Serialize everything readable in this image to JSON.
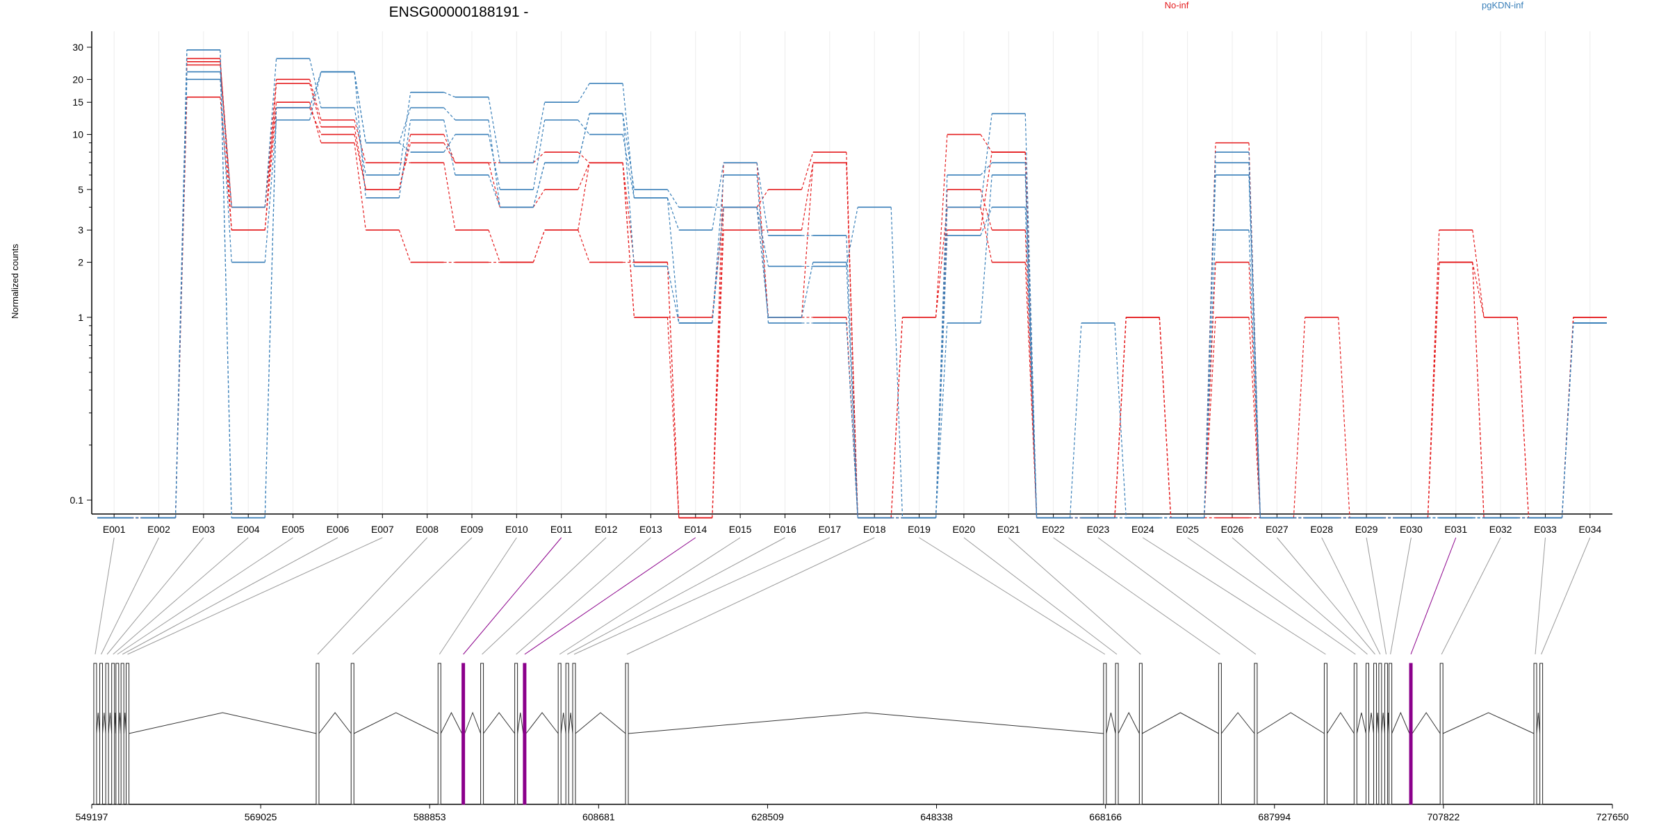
{
  "chart_data": {
    "type": "line",
    "title": "ENSG00000188191 -",
    "ylabel": "Normalized counts",
    "xlabel": "",
    "y_scale": "log",
    "y_ticks": [
      {
        "value": 0.1,
        "label": "0.1"
      },
      {
        "value": 1,
        "label": "1"
      },
      {
        "value": 2,
        "label": "2"
      },
      {
        "value": 3,
        "label": "3"
      },
      {
        "value": 5,
        "label": "5"
      },
      {
        "value": 10,
        "label": "10"
      },
      {
        "value": 15,
        "label": "15"
      },
      {
        "value": 20,
        "label": "20"
      },
      {
        "value": 30,
        "label": "30"
      }
    ],
    "legend": [
      {
        "label": "No-inf",
        "color": "#e41a1c"
      },
      {
        "label": "pgKDN-inf",
        "color": "#377eb8"
      }
    ],
    "legend_position": "top-right",
    "grid": "vertical",
    "categories": [
      "E001",
      "E002",
      "E003",
      "E004",
      "E005",
      "E006",
      "E007",
      "E008",
      "E009",
      "E010",
      "E011",
      "E012",
      "E013",
      "E014",
      "E015",
      "E016",
      "E017",
      "E018",
      "E019",
      "E020",
      "E021",
      "E022",
      "E023",
      "E024",
      "E025",
      "E026",
      "E027",
      "E028",
      "E029",
      "E030",
      "E031",
      "E032",
      "E033",
      "E034"
    ],
    "series": [
      {
        "group": "No-inf",
        "color": "#e41a1c",
        "values": [
          0.08,
          0.08,
          25,
          4,
          20,
          12,
          7,
          7,
          3,
          2,
          3,
          2,
          2,
          0.08,
          3,
          3,
          7,
          0.08,
          0.08,
          5,
          3,
          0.08,
          0.08,
          1,
          0.08,
          1,
          0.08,
          0.08,
          0.08,
          0.08,
          2,
          0.08,
          0.08,
          1
        ]
      },
      {
        "group": "No-inf",
        "color": "#e41a1c",
        "values": [
          0.08,
          0.08,
          26,
          3,
          19,
          11,
          5,
          9,
          7,
          4,
          5,
          7,
          1,
          1,
          4,
          1,
          1,
          0.08,
          1,
          10,
          8,
          0.08,
          0.08,
          1,
          0.08,
          2,
          0.08,
          1,
          0.08,
          0.08,
          2,
          1,
          0.08,
          1
        ]
      },
      {
        "group": "No-inf",
        "color": "#e41a1c",
        "values": [
          0.08,
          0.08,
          24,
          4,
          15,
          9,
          3,
          2,
          2,
          2,
          3,
          7,
          1,
          0.08,
          4,
          5,
          8,
          0.08,
          1,
          4,
          2,
          0.08,
          0.08,
          1,
          0.08,
          9,
          0.08,
          0.08,
          0.08,
          0.08,
          3,
          1,
          0.08,
          1
        ]
      },
      {
        "group": "No-inf",
        "color": "#e41a1c",
        "values": [
          0.08,
          0.08,
          16,
          3,
          14,
          10,
          5,
          10,
          7,
          7,
          8,
          7,
          2,
          0.08,
          7,
          1,
          7,
          0.08,
          0.08,
          3,
          8,
          0.08,
          0.08,
          1,
          0.08,
          0.08,
          0.08,
          0.08,
          0.08,
          0.08,
          2,
          0.08,
          0.08,
          1
        ]
      },
      {
        "group": "pgKDN-inf",
        "color": "#377eb8",
        "values": [
          0.08,
          0.08,
          29,
          0.08,
          14,
          22,
          9,
          14,
          12,
          4,
          7,
          13,
          5,
          4,
          4,
          1,
          2,
          0.08,
          0.08,
          4,
          13,
          0.08,
          0.93,
          0.08,
          0.08,
          6,
          0.08,
          0.08,
          0.08,
          0.08,
          0.08,
          0.08,
          0.08,
          0.93
        ]
      },
      {
        "group": "pgKDN-inf",
        "color": "#377eb8",
        "values": [
          0.08,
          0.08,
          22,
          4,
          26,
          14,
          6,
          17,
          16,
          7,
          15,
          19,
          4.5,
          3,
          7,
          2.8,
          2.8,
          0.08,
          0.08,
          6,
          7,
          0.08,
          0.08,
          0.08,
          0.08,
          8,
          0.08,
          0.08,
          0.08,
          0.08,
          0.08,
          0.08,
          0.08,
          0.93
        ]
      },
      {
        "group": "pgKDN-inf",
        "color": "#377eb8",
        "values": [
          0.08,
          0.08,
          20,
          2,
          12,
          22,
          9,
          8,
          10,
          5,
          12,
          10,
          4.5,
          0.93,
          4,
          1.9,
          1.9,
          4,
          0.08,
          0.93,
          6,
          0.08,
          0.08,
          0.08,
          0.08,
          3,
          0.08,
          0.08,
          0.08,
          0.08,
          0.08,
          0.08,
          0.08,
          0.93
        ]
      },
      {
        "group": "pgKDN-inf",
        "color": "#377eb8",
        "values": [
          0.08,
          0.08,
          29,
          0.08,
          14,
          22,
          4.5,
          12,
          6,
          4,
          7,
          13,
          1.9,
          0.93,
          6,
          0.93,
          0.93,
          0.08,
          0.08,
          2.8,
          4,
          0.08,
          0.08,
          0.08,
          0.08,
          7,
          0.08,
          0.08,
          0.08,
          0.08,
          0.08,
          0.08,
          0.08,
          0.93
        ]
      }
    ],
    "gene_model": {
      "genome_ticks": [
        "549197",
        "569025",
        "588853",
        "608681",
        "628509",
        "648338",
        "668166",
        "687994",
        "707822",
        "727650"
      ],
      "genome_start": 549197,
      "genome_end": 727650,
      "highlight_color": "#8b008b",
      "highlighted_exons": [
        "E011",
        "E014",
        "E031"
      ]
    }
  }
}
